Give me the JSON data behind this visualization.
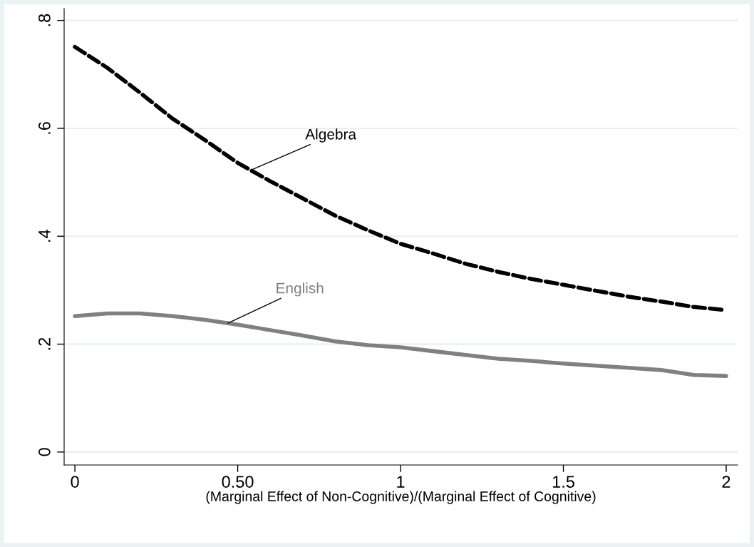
{
  "chart_data": {
    "type": "line",
    "xlabel": "(Marginal Effect of Non-Cognitive)/(Marginal Effect of Cognitive)",
    "x": [
      0,
      0.1,
      0.2,
      0.3,
      0.4,
      0.5,
      0.6,
      0.7,
      0.8,
      0.9,
      1.0,
      1.1,
      1.2,
      1.3,
      1.4,
      1.5,
      1.6,
      1.7,
      1.8,
      1.9,
      2.0
    ],
    "series": [
      {
        "name": "Algebra",
        "color": "#000000",
        "line_style": "dashed",
        "values": [
          0.751,
          0.712,
          0.666,
          0.618,
          0.578,
          0.536,
          0.502,
          0.47,
          0.438,
          0.411,
          0.386,
          0.368,
          0.349,
          0.334,
          0.321,
          0.31,
          0.299,
          0.288,
          0.279,
          0.269,
          0.263
        ]
      },
      {
        "name": "English",
        "color": "#808080",
        "line_style": "solid",
        "values": [
          0.252,
          0.257,
          0.257,
          0.252,
          0.245,
          0.236,
          0.226,
          0.216,
          0.205,
          0.198,
          0.194,
          0.187,
          0.18,
          0.173,
          0.169,
          0.164,
          0.16,
          0.156,
          0.152,
          0.143,
          0.141
        ]
      }
    ],
    "xlim": [
      -0.033,
      2.035
    ],
    "ylim": [
      -0.024,
      0.822
    ],
    "xticks": [
      0,
      {
        "value": 0.5,
        "label": "0.50"
      },
      1,
      1.5,
      2
    ],
    "yticks": [
      0,
      {
        "value": 0.2,
        "label": ".2"
      },
      {
        "value": 0.4,
        "label": ".4"
      },
      {
        "value": 0.6,
        "label": ".6"
      },
      {
        "value": 0.8,
        "label": ".8"
      }
    ],
    "grid": "y",
    "marker": "none"
  }
}
